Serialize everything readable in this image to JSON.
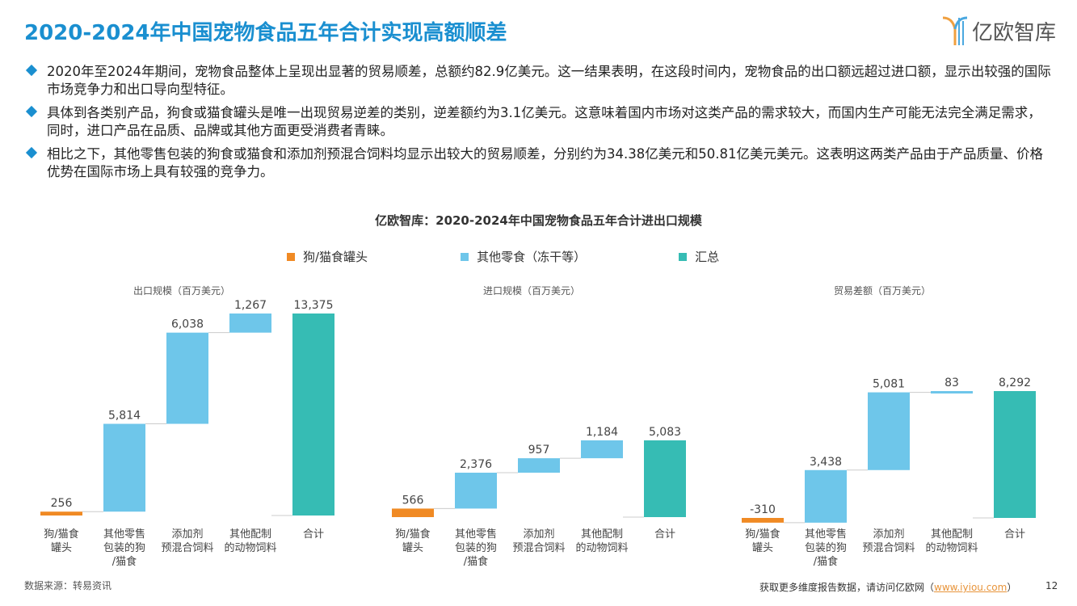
{
  "title": "2020-2024年中国宠物食品五年合计实现高额顺差",
  "logo": "亿欧智库",
  "bullets": [
    "2020年至2024年期间，宠物食品整体上呈现出显著的贸易顺差，总额约82.9亿美元。这一结果表明，在这段时间内，宠物食品的出口额远超过进口额，显示出较强的国际市场竞争力和出口导向型特征。",
    "具体到各类别产品，狗食或猫食罐头是唯一出现贸易逆差的类别，逆差额约为3.1亿美元。这意味着国内市场对这类产品的需求较大，而国内生产可能无法完全满足需求，同时，进口产品在品质、品牌或其他方面更受消费者青睐。",
    "相比之下，其他零售包装的狗食或猫食和添加剂预混合饲料均显示出较大的贸易顺差，分别约为34.38亿美元和50.81亿美元美元。这表明这两类产品由于产品质量、价格优势在国际市场上具有较强的竞争力。"
  ],
  "chart_title": "亿欧智库：2020-2024年中国宠物食品五年合计进出口规模",
  "legend": [
    {
      "label": "狗/猫食罐头",
      "color": "#f08a24"
    },
    {
      "label": "其他零食（冻干等）",
      "color": "#6ec6ea"
    },
    {
      "label": "汇总",
      "color": "#36bcb4"
    }
  ],
  "colors": {
    "canned": "#f08a24",
    "other": "#6ec6ea",
    "total": "#36bcb4"
  },
  "chart_data": [
    {
      "type": "waterfall",
      "ylabel": "出口规模（百万美元）",
      "categories": [
        "狗/猫食\n罐头",
        "其他零售\n包装的狗\n/猫食",
        "添加剂\n预混合饲料",
        "其他配制\n的动物饲料",
        "合计"
      ],
      "values": [
        256,
        5814,
        6038,
        1267,
        13375
      ],
      "labels": [
        "256",
        "5,814",
        "6,038",
        "1,267",
        "13,375"
      ]
    },
    {
      "type": "waterfall",
      "ylabel": "进口规模（百万美元）",
      "categories": [
        "狗/猫食\n罐头",
        "其他零售\n包装的狗\n/猫食",
        "添加剂\n预混合饲料",
        "其他配制\n的动物饲料",
        "合计"
      ],
      "values": [
        566,
        2376,
        957,
        1184,
        5083
      ],
      "labels": [
        "566",
        "2,376",
        "957",
        "1,184",
        "5,083"
      ]
    },
    {
      "type": "waterfall",
      "ylabel": "贸易差额（百万美元）",
      "categories": [
        "狗/猫食\n罐头",
        "其他零售\n包装的狗\n/猫食",
        "添加剂\n预混合饲料",
        "其他配制\n的动物饲料",
        "合计"
      ],
      "values": [
        -310,
        3438,
        5081,
        83,
        8292
      ],
      "labels": [
        "-310",
        "3,438",
        "5,081",
        "83",
        "8,292"
      ]
    }
  ],
  "footer": {
    "source": "数据来源：转易资讯",
    "more": "获取更多维度报告数据，请访问亿欧网（",
    "url": "www.iyiou.com",
    "close": "）",
    "page": "12"
  }
}
